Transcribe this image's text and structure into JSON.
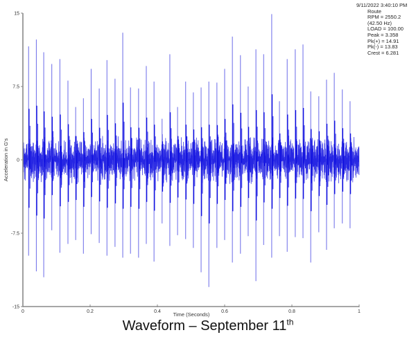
{
  "chart_data": {
    "type": "line",
    "subtype": "time-waveform",
    "title": "Waveform – September 11th",
    "caption_main": "Waveform – September 11",
    "caption_sup": "th",
    "xlabel": "Time (Seconds)",
    "ylabel": "Acceleration in G's",
    "xlim": [
      0,
      1
    ],
    "ylim": [
      -15,
      15
    ],
    "x_ticks": [
      0,
      0.2,
      0.4,
      0.6,
      0.8,
      1
    ],
    "x_tick_labels": [
      "0",
      "0.2",
      "0.4",
      "0.6",
      "0.8",
      "1"
    ],
    "y_ticks": [
      15,
      7.5,
      0,
      -7.5,
      -15
    ],
    "y_tick_labels": [
      "15",
      "7.5",
      "0",
      "-7.5",
      "-15"
    ],
    "grid": false,
    "legend": "none",
    "series_color": "#1010e0",
    "noise_band_g": 2.2,
    "impulse_period_s": 0.0235,
    "impulse_times_s": [
      0.017,
      0.04,
      0.062,
      0.086,
      0.11,
      0.134,
      0.157,
      0.18,
      0.203,
      0.227,
      0.25,
      0.274,
      0.297,
      0.32,
      0.344,
      0.367,
      0.39,
      0.414,
      0.437,
      0.46,
      0.484,
      0.507,
      0.53,
      0.553,
      0.577,
      0.6,
      0.623,
      0.647,
      0.67,
      0.693,
      0.716,
      0.74,
      0.763,
      0.786,
      0.81,
      0.833,
      0.856,
      0.88,
      0.903,
      0.926,
      0.95,
      0.973
    ],
    "impulse_peaks_pos_g": [
      11.6,
      12.3,
      11.0,
      9.8,
      10.3,
      8.1,
      5.4,
      6.3,
      9.3,
      7.3,
      10.2,
      8.3,
      13.0,
      7.4,
      7.3,
      9.6,
      8.0,
      4.2,
      10.8,
      5.4,
      8.0,
      6.9,
      7.4,
      8.0,
      7.9,
      9.3,
      12.6,
      10.7,
      7.5,
      11.3,
      10.8,
      14.9,
      6.0,
      10.3,
      11.3,
      11.8,
      7.0,
      6.5,
      8.2,
      8.9,
      7.2,
      6.0
    ],
    "impulse_peaks_neg_g": [
      -9.8,
      -11.4,
      -12.0,
      -7.2,
      -9.5,
      -8.6,
      -8.2,
      -9.6,
      -7.6,
      -8.5,
      -9.8,
      -8.9,
      -10.0,
      -9.6,
      -10.0,
      -8.6,
      -10.4,
      -6.5,
      -8.8,
      -7.7,
      -8.1,
      -9.0,
      -11.5,
      -13.0,
      -9.0,
      -8.2,
      -10.5,
      -9.6,
      -7.8,
      -12.4,
      -8.7,
      -10.0,
      -7.8,
      -9.4,
      -7.9,
      -8.0,
      -10.5,
      -7.4,
      -9.2,
      -7.0,
      -6.5,
      -7.0
    ]
  },
  "info_box": {
    "datetime": "9/11/2022 3:40:10 PM",
    "lines": [
      "Route",
      "RPM = 2550.2",
      "(42.50 Hz)",
      "LOAD = 100.00",
      "Peak = 3.358",
      "Pk(+) = 14.91",
      "Pk(-) = 13.83",
      "Crest = 6.281"
    ]
  },
  "colors": {
    "waveform": "#1010e0",
    "waveform_light": "#6a6ae8",
    "axis": "#888888",
    "background": "#ffffff"
  }
}
